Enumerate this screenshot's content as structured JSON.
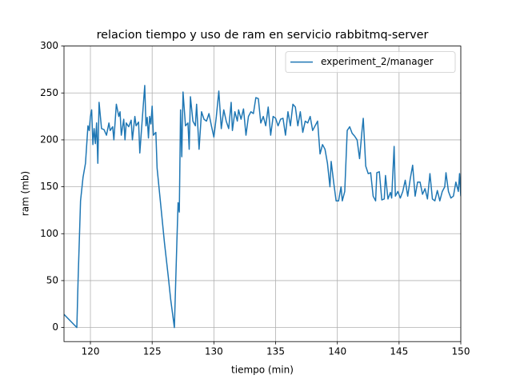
{
  "chart_data": {
    "type": "line",
    "title": "relacion tiempo y uso de ram en servicio rabbitmq-server",
    "x_label": "tiempo (min)",
    "y_label": "ram (mb)",
    "x": [
      117.86,
      118.9,
      119.0,
      119.2,
      119.4,
      119.6,
      119.8,
      119.9,
      120.0,
      120.1,
      120.2,
      120.3,
      120.4,
      120.5,
      120.6,
      120.7,
      120.9,
      121.1,
      121.3,
      121.5,
      121.6,
      121.8,
      121.9,
      122.1,
      122.3,
      122.4,
      122.5,
      122.7,
      122.8,
      122.9,
      123.1,
      123.3,
      123.4,
      123.6,
      123.7,
      123.9,
      124.0,
      124.2,
      124.4,
      124.5,
      124.6,
      124.7,
      124.8,
      124.9,
      125.0,
      125.1,
      125.3,
      125.4,
      125.7,
      126.0,
      126.3,
      126.5,
      126.8,
      127.0,
      127.1,
      127.2,
      127.3,
      127.4,
      127.5,
      127.7,
      127.9,
      128.0,
      128.1,
      128.3,
      128.5,
      128.6,
      128.8,
      129.0,
      129.2,
      129.4,
      129.6,
      129.8,
      130.0,
      130.2,
      130.4,
      130.6,
      130.8,
      131.0,
      131.2,
      131.4,
      131.5,
      131.7,
      131.9,
      132.0,
      132.2,
      132.4,
      132.6,
      132.8,
      133.0,
      133.2,
      133.4,
      133.6,
      133.8,
      134.0,
      134.2,
      134.4,
      134.6,
      134.8,
      135.0,
      135.2,
      135.4,
      135.6,
      135.8,
      136.0,
      136.2,
      136.4,
      136.6,
      136.8,
      137.0,
      137.2,
      137.4,
      137.6,
      137.8,
      138.0,
      138.2,
      138.4,
      138.6,
      138.8,
      139.0,
      139.2,
      139.4,
      139.5,
      139.7,
      139.9,
      140.1,
      140.3,
      140.4,
      140.6,
      140.8,
      141.0,
      141.2,
      141.4,
      141.6,
      141.8,
      142.0,
      142.1,
      142.3,
      142.5,
      142.7,
      142.9,
      143.1,
      143.2,
      143.4,
      143.6,
      143.8,
      143.9,
      144.1,
      144.3,
      144.4,
      144.6,
      144.7,
      144.9,
      145.1,
      145.3,
      145.5,
      145.7,
      145.9,
      146.1,
      146.3,
      146.5,
      146.7,
      146.9,
      147.1,
      147.3,
      147.5,
      147.7,
      147.9,
      148.1,
      148.3,
      148.5,
      148.7,
      148.8,
      149.0,
      149.2,
      149.4,
      149.6,
      149.8,
      149.9,
      150.0
    ],
    "series": [
      {
        "name": "experiment_2/manager",
        "color": "#1f77b4",
        "values": [
          14,
          0,
          50,
          135,
          160,
          175,
          215,
          210,
          225,
          232,
          195,
          212,
          196,
          218,
          175,
          240,
          212,
          211,
          205,
          218,
          210,
          214,
          200,
          238,
          225,
          230,
          205,
          222,
          200,
          218,
          214,
          221,
          200,
          225,
          215,
          219,
          186,
          222,
          258,
          215,
          224,
          202,
          225,
          217,
          236,
          205,
          208,
          170,
          130,
          90,
          55,
          30,
          0,
          90,
          133,
          123,
          232,
          182,
          251,
          215,
          218,
          190,
          246,
          220,
          215,
          238,
          190,
          230,
          222,
          220,
          228,
          215,
          203,
          225,
          252,
          212,
          232,
          220,
          212,
          240,
          210,
          230,
          220,
          232,
          222,
          233,
          205,
          225,
          230,
          228,
          245,
          244,
          218,
          225,
          215,
          235,
          205,
          225,
          223,
          215,
          222,
          223,
          205,
          230,
          215,
          238,
          235,
          215,
          230,
          208,
          220,
          218,
          225,
          210,
          215,
          220,
          185,
          195,
          190,
          175,
          150,
          177,
          155,
          135,
          135,
          150,
          135,
          145,
          210,
          214,
          207,
          204,
          200,
          180,
          210,
          223,
          172,
          164,
          165,
          140,
          135,
          165,
          166,
          136,
          137,
          162,
          137,
          144,
          138,
          193,
          140,
          145,
          138,
          145,
          157,
          140,
          158,
          173,
          140,
          155,
          155,
          142,
          148,
          137,
          164,
          137,
          135,
          146,
          135,
          145,
          150,
          165,
          145,
          138,
          140,
          155,
          145,
          164,
          140
        ]
      }
    ],
    "xlim": [
      117.86,
      150
    ],
    "ylim": [
      -15,
      300
    ],
    "xticks": [
      120,
      125,
      130,
      135,
      140,
      145,
      150
    ],
    "yticks": [
      0,
      50,
      100,
      150,
      200,
      250,
      300
    ],
    "grid": true,
    "legend": "upper right"
  }
}
